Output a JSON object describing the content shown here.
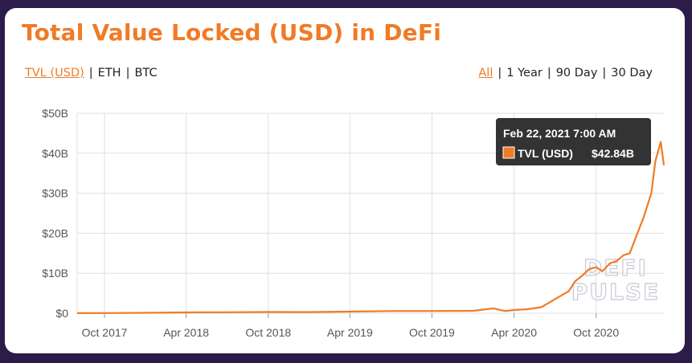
{
  "header": {
    "title": "Total Value Locked (USD) in DeFi"
  },
  "metric_tabs": [
    {
      "label": "TVL (USD)",
      "active": true
    },
    {
      "label": "ETH",
      "active": false
    },
    {
      "label": "BTC",
      "active": false
    }
  ],
  "range_tabs": [
    {
      "label": "All",
      "active": true
    },
    {
      "label": "1 Year",
      "active": false
    },
    {
      "label": "90 Day",
      "active": false
    },
    {
      "label": "30 Day",
      "active": false
    }
  ],
  "watermark": {
    "line1": "DEFI",
    "line2": "PULSE"
  },
  "colors": {
    "accent": "#f07b26",
    "grid": "#e0e0e0",
    "tooltip_bg": "#333333",
    "background": "#2b1c4a"
  },
  "tooltip": {
    "date": "Feb 22, 2021 7:00 AM",
    "series": "TVL (USD)",
    "value": "$42.84B"
  },
  "chart_data": {
    "type": "line",
    "title": "Total Value Locked (USD) in DeFi",
    "xlabel": "",
    "ylabel": "",
    "y_ticks": [
      "$0",
      "$10B",
      "$20B",
      "$30B",
      "$40B",
      "$50B"
    ],
    "x_ticks": [
      "Oct 2017",
      "Apr 2018",
      "Oct 2018",
      "Apr 2019",
      "Oct 2019",
      "Apr 2020",
      "Oct 2020"
    ],
    "ylim": [
      0,
      50
    ],
    "xlim": [
      "2017-08-01",
      "2021-03-01"
    ],
    "grid": true,
    "legend": "none",
    "series": [
      {
        "name": "TVL (USD)",
        "unit": "billion USD",
        "x": [
          "2017-08-01",
          "2017-10-01",
          "2018-01-01",
          "2018-04-01",
          "2018-07-01",
          "2018-10-01",
          "2019-01-01",
          "2019-04-01",
          "2019-07-01",
          "2019-10-01",
          "2020-01-01",
          "2020-02-15",
          "2020-03-12",
          "2020-04-01",
          "2020-05-01",
          "2020-06-01",
          "2020-07-01",
          "2020-08-01",
          "2020-08-15",
          "2020-09-01",
          "2020-09-15",
          "2020-10-01",
          "2020-10-15",
          "2020-11-01",
          "2020-11-15",
          "2020-12-01",
          "2020-12-15",
          "2021-01-01",
          "2021-01-15",
          "2021-02-01",
          "2021-02-10",
          "2021-02-22",
          "2021-03-01"
        ],
        "values": [
          0.02,
          0.05,
          0.1,
          0.2,
          0.25,
          0.3,
          0.28,
          0.4,
          0.55,
          0.55,
          0.6,
          1.2,
          0.55,
          0.8,
          1.0,
          1.5,
          3.5,
          5.5,
          8.0,
          9.5,
          11.0,
          11.5,
          10.5,
          12.5,
          13.0,
          14.5,
          15.0,
          20.0,
          24.0,
          30.0,
          38.0,
          42.84,
          37.0
        ]
      }
    ]
  }
}
